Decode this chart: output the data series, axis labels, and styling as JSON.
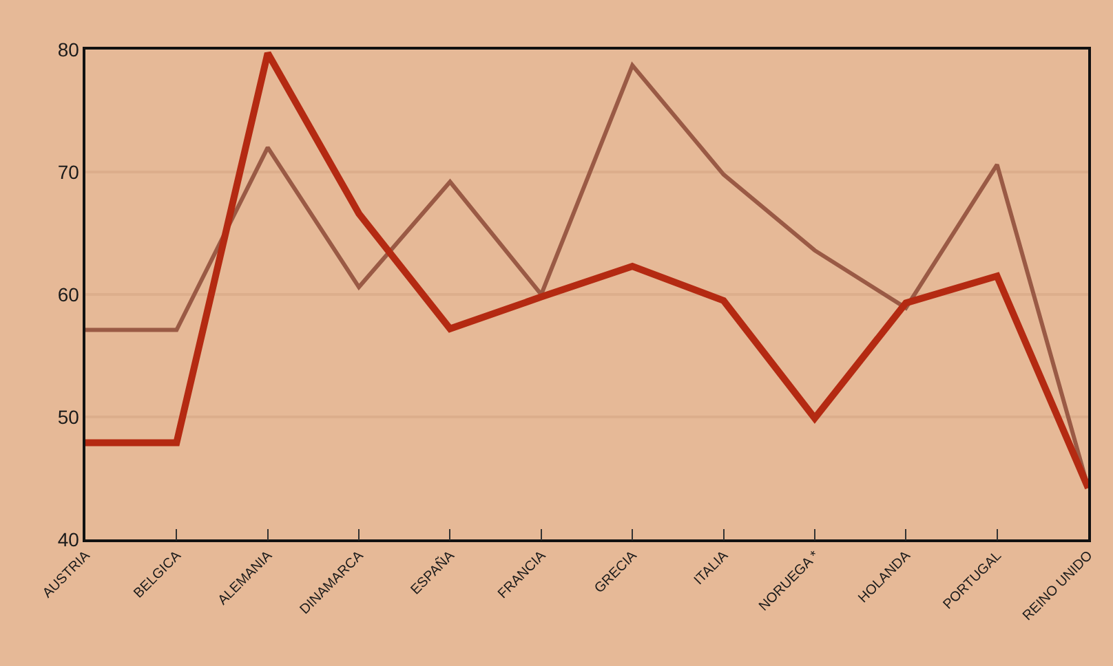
{
  "chart_data": {
    "type": "line",
    "categories": [
      "AUSTRIA",
      "BELGICA",
      "ALEMANIA",
      "DINAMARCA",
      "ESPAÑA",
      "FRANCIA",
      "GRECIA",
      "ITALIA",
      "NORUEGA *",
      "HOLANDA",
      "PORTUGAL",
      "REINO UNIDO"
    ],
    "series": [
      {
        "color": "#9a5a45",
        "values": [
          57.1,
          57.1,
          72,
          60.6,
          69.2,
          60,
          78.7,
          69.8,
          63.6,
          58.9,
          70.6,
          44.2
        ]
      },
      {
        "color": "#b42a12",
        "values": [
          47.9,
          47.9,
          79.7,
          66.6,
          57.2,
          59.8,
          62.3,
          59.5,
          49.9,
          59.3,
          61.5,
          44.2
        ]
      }
    ],
    "ylim": [
      40,
      80
    ],
    "yticks": [
      40,
      50,
      60,
      70,
      80
    ],
    "grid": "y",
    "marker": "none",
    "line_style": "solid"
  }
}
